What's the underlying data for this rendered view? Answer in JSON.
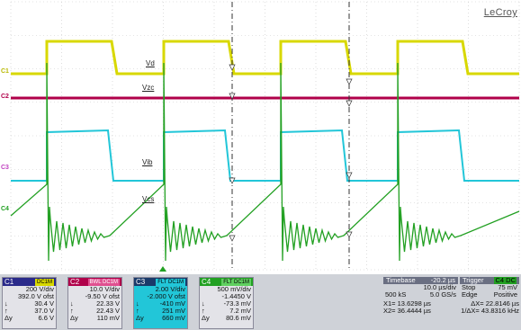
{
  "brand": "LeCroy",
  "trace_labels": {
    "vd": "Vd",
    "vzc": "Vzc",
    "vib": "Vib",
    "vcs": "Vcs"
  },
  "channel_indicators": {
    "c1": "C1",
    "c2": "C2",
    "c3": "C3",
    "c4": "C4"
  },
  "colors": {
    "c1": "#d8d800",
    "c2": "#b0004a",
    "c3": "#22c6d8",
    "c4": "#22a022",
    "grid": "#c8c8c8"
  },
  "channels": [
    {
      "name": "C1",
      "tag": "DC1M",
      "vdiv": "200 V/div",
      "ofst": "392.0 V ofst",
      "r1k": "↓",
      "r1v": "30.4 V",
      "r2k": "↑",
      "r2v": "37.0 V",
      "r3k": "Δy",
      "r3v": "6.6 V"
    },
    {
      "name": "C2",
      "tag": "BWL DC1M",
      "vdiv": "10.0 V/div",
      "ofst": "-9.50 V ofst",
      "r1k": "↓",
      "r1v": "22.33 V",
      "r2k": "↑",
      "r2v": "22.43 V",
      "r3k": "Δy",
      "r3v": "110 mV"
    },
    {
      "name": "C3",
      "tag": "FLT DC1M",
      "vdiv": "2.00 V/div",
      "ofst": "-2.000 V ofst",
      "r1k": "↓",
      "r1v": "-410 mV",
      "r2k": "↑",
      "r2v": "251 mV",
      "r3k": "Δy",
      "r3v": "660 mV"
    },
    {
      "name": "C4",
      "tag": "FLT DC1M",
      "vdiv": "500 mV/div",
      "ofst": "-1.4450 V",
      "r1k": "↓",
      "r1v": "-73.3 mV",
      "r2k": "↑",
      "r2v": "7.2 mV",
      "r3k": "Δy",
      "r3v": "80.6 mV"
    }
  ],
  "timebase": {
    "label": "Timebase",
    "delay": "-20.2 µs",
    "tdiv": "10.0 µs/div",
    "samples": "500 kS",
    "rate": "5.0 GS/s"
  },
  "trigger": {
    "label": "Trigger",
    "tag": "C4 DC",
    "level": "75 mV",
    "mode": "Stop",
    "type": "Edge",
    "slope": "Positive"
  },
  "cursors": {
    "x1": "X1= 13.6298 µs",
    "dx": "ΔX=  22.8146 µs",
    "x2": "X2= 36.4444 µs",
    "inv": "1/ΔX=  43.8316 kHz"
  }
}
